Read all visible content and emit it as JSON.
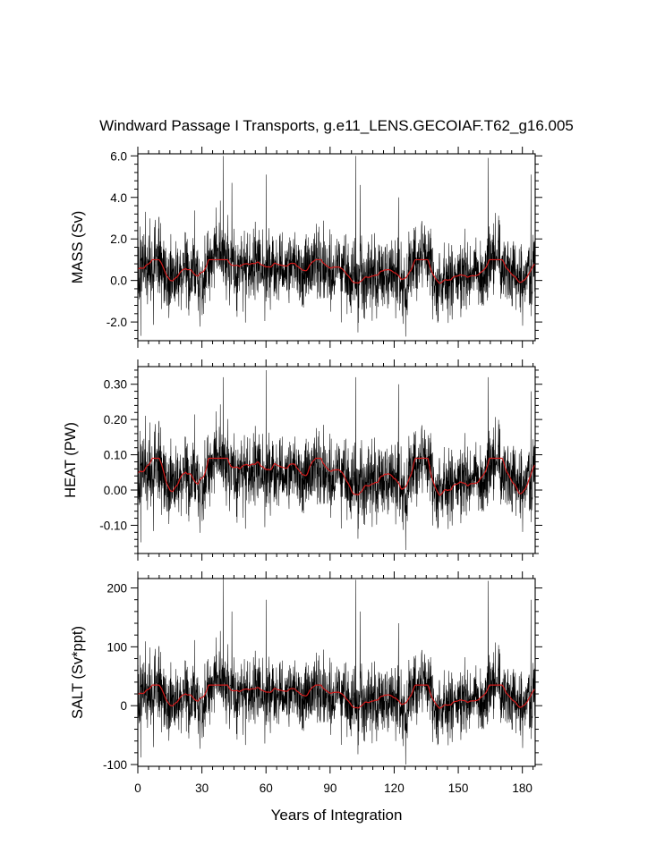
{
  "title": "Windward Passage I Transports, g.e11_LENS.GECOIAF.T62_g16.005",
  "xlabel": "Years of Integration",
  "colors": {
    "raw": "#000000",
    "smoothed": "#d11a1a",
    "background": "#ffffff"
  },
  "chart_data": [
    {
      "type": "line",
      "ylabel": "MASS (Sv)",
      "xlim": [
        0,
        186
      ],
      "ylim": [
        -2.9,
        6.1
      ],
      "yticks": [
        -2.0,
        0.0,
        2.0,
        4.0,
        6.0
      ],
      "ytick_labels": [
        "-2.0",
        "0.0",
        "2.0",
        "4.0",
        "6.0"
      ],
      "xticks": [
        0,
        30,
        60,
        90,
        120,
        150,
        180
      ],
      "xtick_labels": [],
      "series": [
        {
          "role": "monthly",
          "approx_mean": 0.3,
          "approx_std": 1.0,
          "approx_min": -2.7,
          "approx_max": 6.1,
          "peaks": [
            [
              40,
              6.0
            ],
            [
              102,
              6.0
            ],
            [
              164,
              5.9
            ],
            [
              60,
              5.1
            ],
            [
              44,
              4.7
            ],
            [
              104,
              4.6
            ],
            [
              184,
              5.1
            ],
            [
              122,
              4.0
            ]
          ]
        },
        {
          "role": "smoothed",
          "approx_range": [
            -0.3,
            1.0
          ]
        }
      ]
    },
    {
      "type": "line",
      "ylabel": "HEAT (PW)",
      "xlim": [
        0,
        186
      ],
      "ylim": [
        -0.18,
        0.35
      ],
      "yticks": [
        -0.1,
        0.0,
        0.1,
        0.2,
        0.3
      ],
      "ytick_labels": [
        "-0.10",
        "0.00",
        "0.10",
        "0.20",
        "0.30"
      ],
      "xticks": [
        0,
        30,
        60,
        90,
        120,
        150,
        180
      ],
      "xtick_labels": [],
      "series": [
        {
          "role": "monthly",
          "approx_mean": 0.03,
          "approx_std": 0.06,
          "approx_min": -0.17,
          "approx_max": 0.34,
          "peaks": [
            [
              40,
              0.32
            ],
            [
              60,
              0.34
            ],
            [
              102,
              0.32
            ],
            [
              164,
              0.32
            ],
            [
              122,
              0.3
            ],
            [
              184,
              0.28
            ]
          ]
        },
        {
          "role": "smoothed",
          "approx_range": [
            -0.03,
            0.09
          ]
        }
      ]
    },
    {
      "type": "line",
      "ylabel": "SALT (Sv*ppt)",
      "xlim": [
        0,
        186
      ],
      "ylim": [
        -103,
        216
      ],
      "yticks": [
        -100,
        0,
        100,
        200
      ],
      "ytick_labels": [
        "-100",
        "0",
        "100",
        "200"
      ],
      "xticks": [
        0,
        30,
        60,
        90,
        120,
        150,
        180
      ],
      "xtick_labels": [
        "0",
        "30",
        "60",
        "90",
        "120",
        "150",
        "180"
      ],
      "series": [
        {
          "role": "monthly",
          "approx_mean": 10,
          "approx_std": 33,
          "approx_min": -100,
          "approx_max": 215,
          "peaks": [
            [
              40,
              215
            ],
            [
              102,
              214
            ],
            [
              164,
              212
            ],
            [
              60,
              180
            ],
            [
              44,
              160
            ],
            [
              104,
              160
            ],
            [
              184,
              180
            ],
            [
              122,
              140
            ]
          ]
        },
        {
          "role": "smoothed",
          "approx_range": [
            -10,
            35
          ]
        }
      ]
    }
  ]
}
